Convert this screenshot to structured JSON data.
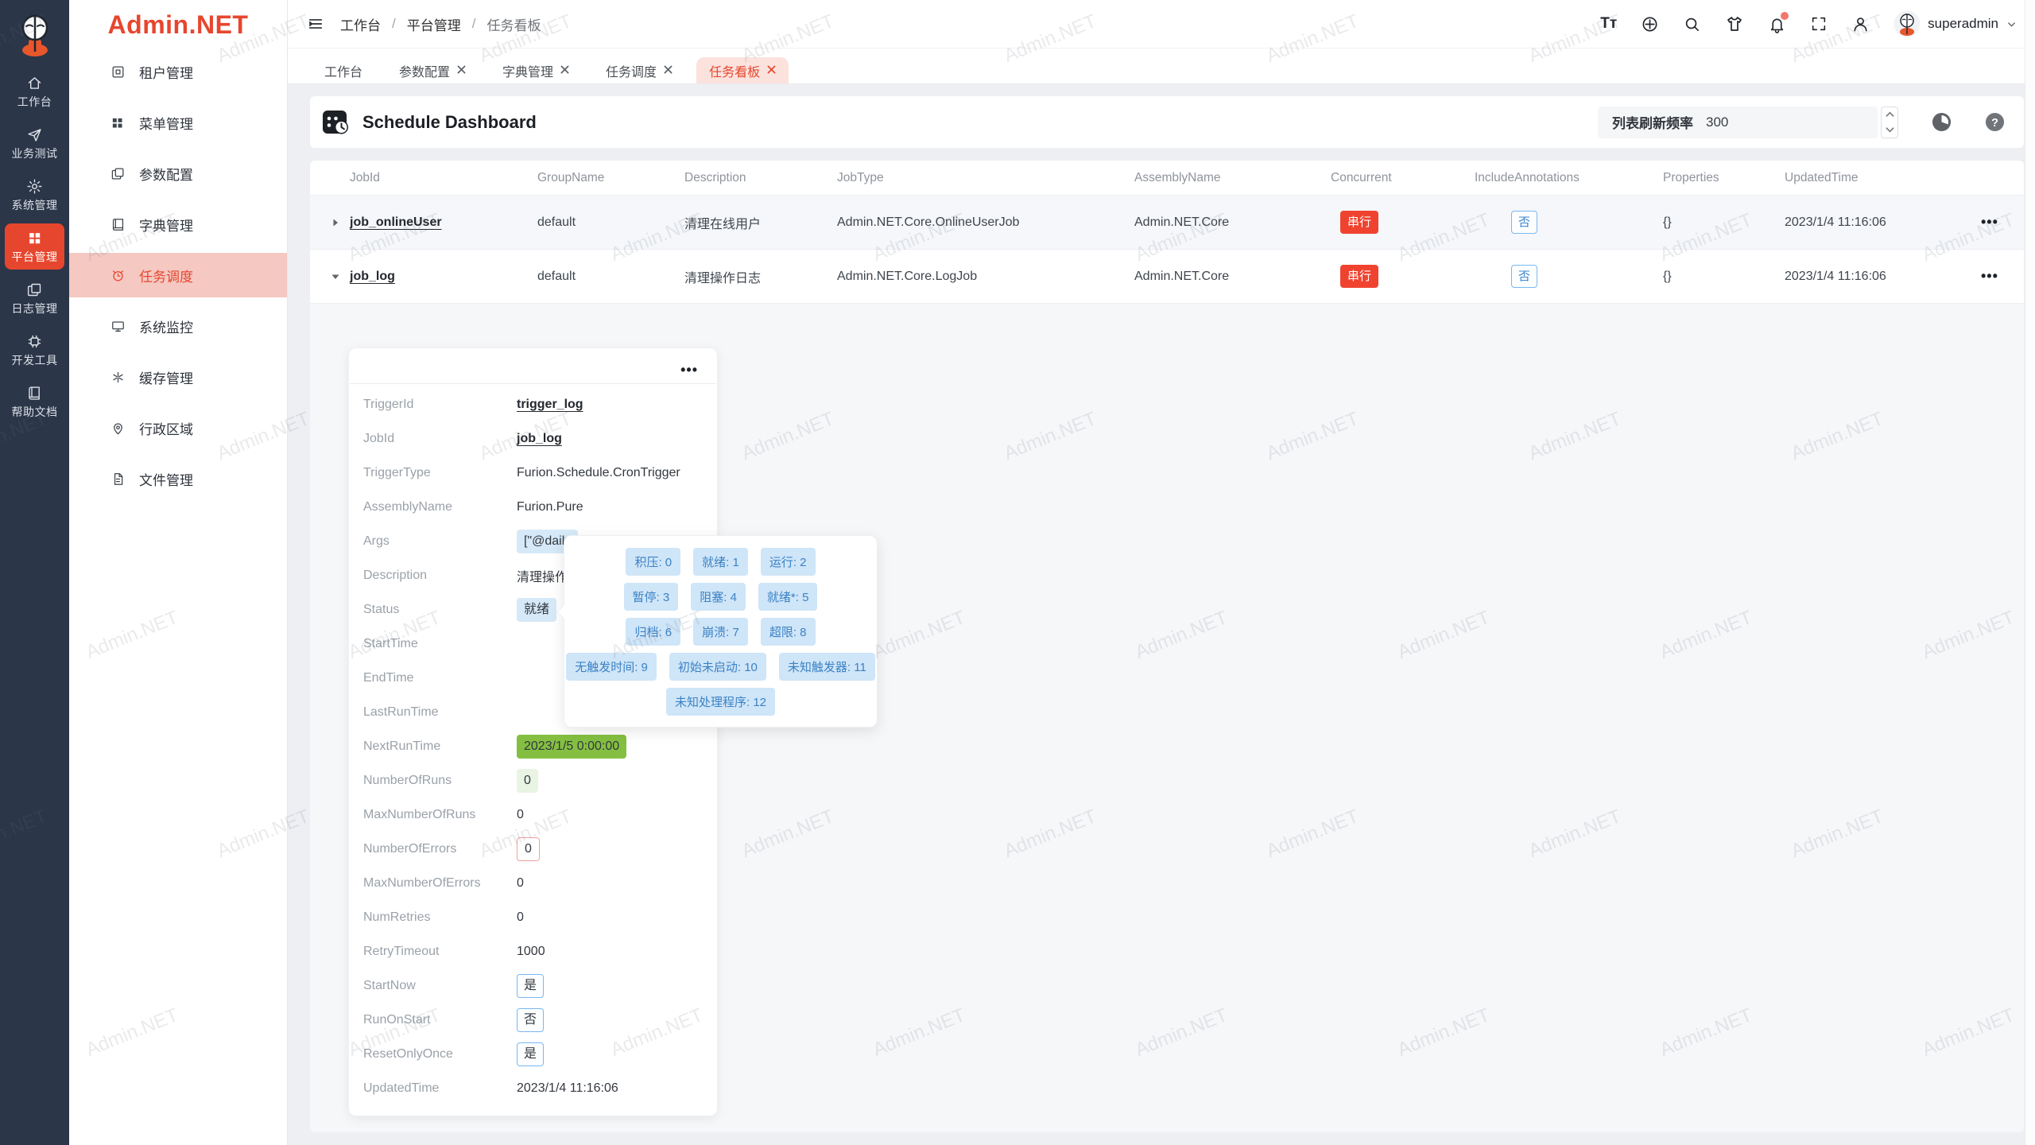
{
  "app": {
    "brand": "Admin.NET"
  },
  "watermark": {
    "text": "Admin.NET"
  },
  "icons": {
    "more": "•••",
    "font_size": "Tт"
  },
  "colors": {
    "accent": "#e7462e",
    "danger_badge": "#f0432f",
    "link_blue": "#3c87cf",
    "success_green": "#84bf41",
    "info_blue_soft": "#d6e9f8"
  },
  "rail": {
    "items": [
      {
        "label": "工作台"
      },
      {
        "label": "业务测试"
      },
      {
        "label": "系统管理"
      },
      {
        "label": "平台管理"
      },
      {
        "label": "日志管理"
      },
      {
        "label": "开发工具"
      },
      {
        "label": "帮助文档"
      }
    ]
  },
  "sidebar": {
    "logo_text": "Admin.NET",
    "items": [
      {
        "label": "租户管理"
      },
      {
        "label": "菜单管理"
      },
      {
        "label": "参数配置"
      },
      {
        "label": "字典管理"
      },
      {
        "label": "任务调度"
      },
      {
        "label": "系统监控"
      },
      {
        "label": "缓存管理"
      },
      {
        "label": "行政区域"
      },
      {
        "label": "文件管理"
      }
    ]
  },
  "breadcrumb": {
    "separator": "/",
    "items": [
      "工作台",
      "平台管理",
      "任务看板"
    ]
  },
  "topbar": {
    "username": "superadmin"
  },
  "tabs": [
    {
      "label": "工作台"
    },
    {
      "label": "参数配置"
    },
    {
      "label": "字典管理"
    },
    {
      "label": "任务调度"
    },
    {
      "label": "任务看板"
    }
  ],
  "toolbar": {
    "title": "Schedule Dashboard",
    "refresh_label": "列表刷新频率",
    "refresh_value": "300"
  },
  "table": {
    "columns": [
      "JobId",
      "GroupName",
      "Description",
      "JobType",
      "AssemblyName",
      "Concurrent",
      "IncludeAnnotations",
      "Properties",
      "UpdatedTime"
    ],
    "rows": [
      {
        "job_id": "job_onlineUser",
        "group_name": "default",
        "description": "清理在线用户",
        "job_type": "Admin.NET.Core.OnlineUserJob",
        "assembly_name": "Admin.NET.Core",
        "concurrent": "串行",
        "include_annotations": "否",
        "properties": "{}",
        "updated_time": "2023/1/4 11:16:06"
      },
      {
        "job_id": "job_log",
        "group_name": "default",
        "description": "清理操作日志",
        "job_type": "Admin.NET.Core.LogJob",
        "assembly_name": "Admin.NET.Core",
        "concurrent": "串行",
        "include_annotations": "否",
        "properties": "{}",
        "updated_time": "2023/1/4 11:16:06"
      }
    ]
  },
  "detail": {
    "rows": [
      {
        "label": "TriggerId",
        "value": "trigger_log"
      },
      {
        "label": "JobId",
        "value": "job_log"
      },
      {
        "label": "TriggerType",
        "value": "Furion.Schedule.CronTrigger"
      },
      {
        "label": "AssemblyName",
        "value": "Furion.Pure"
      },
      {
        "label": "Args",
        "value": "[\"@daily"
      },
      {
        "label": "Description",
        "value": "清理操作日志"
      },
      {
        "label": "Status",
        "value": "就绪"
      },
      {
        "label": "StartTime",
        "value": ""
      },
      {
        "label": "EndTime",
        "value": ""
      },
      {
        "label": "LastRunTime",
        "value": ""
      },
      {
        "label": "NextRunTime",
        "value": "2023/1/5 0:00:00"
      },
      {
        "label": "NumberOfRuns",
        "value": "0"
      },
      {
        "label": "MaxNumberOfRuns",
        "value": "0"
      },
      {
        "label": "NumberOfErrors",
        "value": "0"
      },
      {
        "label": "MaxNumberOfErrors",
        "value": "0"
      },
      {
        "label": "NumRetries",
        "value": "0"
      },
      {
        "label": "RetryTimeout",
        "value": "1000"
      },
      {
        "label": "StartNow",
        "value": "是"
      },
      {
        "label": "RunOnStart",
        "value": "否"
      },
      {
        "label": "ResetOnlyOnce",
        "value": "是"
      },
      {
        "label": "UpdatedTime",
        "value": "2023/1/4 11:16:06"
      }
    ]
  },
  "tooltip": {
    "badges": [
      [
        "积压: 0",
        "就绪: 1",
        "运行: 2"
      ],
      [
        "暂停: 3",
        "阻塞: 4",
        "就绪*: 5"
      ],
      [
        "归档: 6",
        "崩溃: 7",
        "超限: 8"
      ],
      [
        "无触发时间: 9",
        "初始未启动: 10",
        "未知触发器: 11"
      ],
      [
        "未知处理程序: 12"
      ]
    ]
  }
}
